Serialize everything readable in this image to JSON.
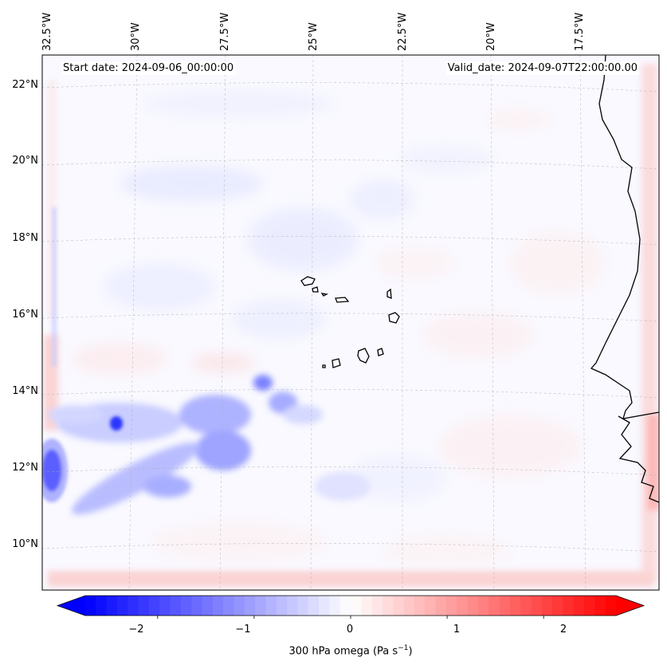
{
  "map": {
    "start_date": "Start date: 2024-09-06_00:00:00",
    "valid_date": "Valid_date: 2024-09-07T22:00:00.00",
    "lon_labels": [
      "32.5°W",
      "30°W",
      "27.5°W",
      "25°W",
      "22.5°W",
      "20°W",
      "17.5°W"
    ],
    "lat_labels": [
      "22°N",
      "20°N",
      "18°N",
      "16°N",
      "14°N",
      "12°N",
      "10°N"
    ]
  },
  "colorbar": {
    "ticks": [
      "−2",
      "−1",
      "0",
      "1",
      "2"
    ],
    "tick_values": [
      -2,
      -1,
      0,
      1,
      2
    ],
    "range": [
      -2.75,
      2.75
    ],
    "label": "300 hPa omega (Pa s",
    "label_sup": "−1",
    "label_end": ")",
    "low_color": "#0000ff",
    "mid_color": "#ffffff",
    "high_color": "#ff0000"
  }
}
